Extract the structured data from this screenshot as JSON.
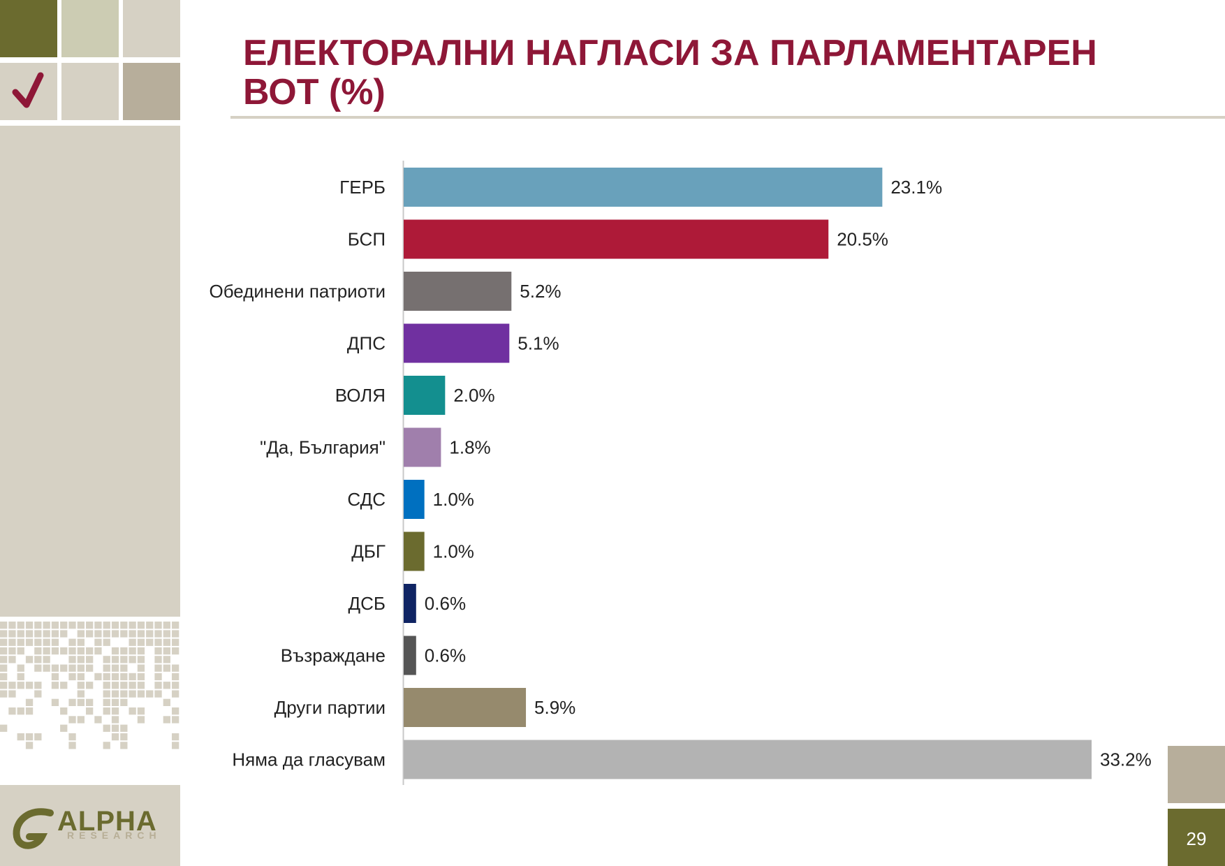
{
  "slide": {
    "title": "ЕЛЕКТОРАЛНИ НАГЛАСИ ЗА ПАРЛАМЕНТАРЕН ВОТ (%)",
    "page_number": "29",
    "logo": {
      "name": "ALPHA",
      "sub": "RESEARCH"
    },
    "check_icon": "checkmark-icon"
  },
  "colors": {
    "title": "#8e1737",
    "accent_olive": "#6b6b2f",
    "panel": "#d6d1c4"
  },
  "chart_data": {
    "type": "bar",
    "orientation": "horizontal",
    "categories": [
      "ГЕРБ",
      "БСП",
      "Обединени патриоти",
      "ДПС",
      "ВОЛЯ",
      "\"Да, България\"",
      "СДС",
      "ДБГ",
      "ДСБ",
      "Възраждане",
      "Други партии",
      "Няма да гласувам"
    ],
    "values": [
      23.1,
      20.5,
      5.2,
      5.1,
      2.0,
      1.8,
      1.0,
      1.0,
      0.6,
      0.6,
      5.9,
      33.2
    ],
    "labels": [
      "23.1%",
      "20.5%",
      "5.2%",
      "5.1%",
      "2.0%",
      "1.8%",
      "1.0%",
      "1.0%",
      "0.6%",
      "0.6%",
      "5.9%",
      "33.2%"
    ],
    "colors": [
      "#69a1bb",
      "#ae1a38",
      "#767070",
      "#7030a0",
      "#138f8f",
      "#a07fac",
      "#0070c0",
      "#6b6b2f",
      "#0f2463",
      "#555555",
      "#968a6d",
      "#b3b3b3"
    ],
    "xlim": [
      0,
      33.2
    ],
    "grid": false,
    "legend": "none"
  }
}
